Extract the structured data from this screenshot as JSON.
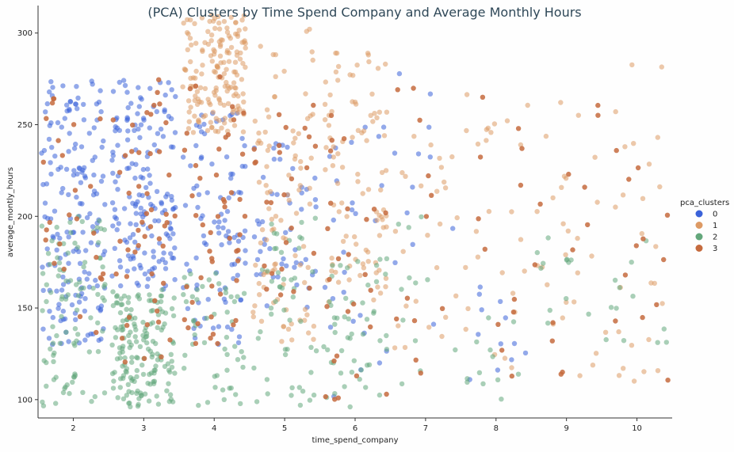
{
  "chart_data": {
    "type": "scatter",
    "title": "(PCA) Clusters by Time Spend Company and Average Monthly Hours",
    "xlabel": "time_spend_company",
    "ylabel": "average_montly_hours",
    "xlim": [
      1.5,
      10.5
    ],
    "ylim": [
      90,
      315
    ],
    "xticks": [
      2,
      3,
      4,
      5,
      6,
      7,
      8,
      9,
      10
    ],
    "yticks": [
      100,
      150,
      200,
      250,
      300
    ],
    "xtick_labels": [
      "2",
      "3",
      "4",
      "5",
      "6",
      "7",
      "8",
      "9",
      "10"
    ],
    "ytick_labels": [
      "100",
      "150",
      "200",
      "250",
      "300"
    ],
    "grid": false,
    "legend_placement": "center-right",
    "legend_title": "pca_clusters",
    "jitter": 0.45,
    "series": [
      {
        "name": "0",
        "color": "#3a62d9",
        "regions": [
          {
            "x": 2,
            "y_range": [
              130,
              275
            ],
            "density": "very high"
          },
          {
            "x": 3,
            "y_range": [
              160,
              275
            ],
            "density": "very high"
          },
          {
            "x": 4,
            "y_range": [
              130,
              260
            ],
            "density": "high"
          },
          {
            "x": 5,
            "y_range": [
              150,
              240
            ],
            "density": "medium"
          },
          {
            "x": 6,
            "y_range": [
              100,
              250
            ],
            "density": "low"
          },
          {
            "x": 7,
            "y_range": [
              130,
              286
            ],
            "density": "sparse"
          },
          {
            "x": 8,
            "y_range": [
              102,
              180
            ],
            "density": "sparse"
          }
        ]
      },
      {
        "name": "1",
        "color": "#dd9a64",
        "regions": [
          {
            "x": 4,
            "y_range": [
              245,
              310
            ],
            "density": "very high"
          },
          {
            "x": 5,
            "y_range": [
              130,
              305
            ],
            "density": "high"
          },
          {
            "x": 6,
            "y_range": [
              150,
              290
            ],
            "density": "high"
          },
          {
            "x": 7,
            "y_range": [
              100,
              286
            ],
            "density": "low"
          },
          {
            "x": 8,
            "y_range": [
              110,
              280
            ],
            "density": "low"
          },
          {
            "x": 9,
            "y_range": [
              100,
              282
            ],
            "density": "low"
          },
          {
            "x": 10,
            "y_range": [
              110,
              285
            ],
            "density": "low"
          }
        ]
      },
      {
        "name": "2",
        "color": "#63a77b",
        "regions": [
          {
            "x": 2,
            "y_range": [
              96,
              200
            ],
            "density": "high"
          },
          {
            "x": 3,
            "y_range": [
              96,
              160
            ],
            "density": "very high"
          },
          {
            "x": 4,
            "y_range": [
              96,
              170
            ],
            "density": "medium"
          },
          {
            "x": 5,
            "y_range": [
              96,
              200
            ],
            "density": "medium"
          },
          {
            "x": 6,
            "y_range": [
              96,
              180
            ],
            "density": "medium"
          },
          {
            "x": 7,
            "y_range": [
              100,
              200
            ],
            "density": "sparse"
          },
          {
            "x": 8,
            "y_range": [
              100,
              150
            ],
            "density": "sparse"
          },
          {
            "x": 9,
            "y_range": [
              130,
              200
            ],
            "density": "sparse"
          },
          {
            "x": 10,
            "y_range": [
              130,
              200
            ],
            "density": "sparse"
          }
        ]
      },
      {
        "name": "3",
        "color": "#c56b3e",
        "regions": [
          {
            "x": 2,
            "y_range": [
              130,
              275
            ],
            "density": "low"
          },
          {
            "x": 3,
            "y_range": [
              120,
              275
            ],
            "density": "medium"
          },
          {
            "x": 4,
            "y_range": [
              130,
              290
            ],
            "density": "medium"
          },
          {
            "x": 5,
            "y_range": [
              150,
              270
            ],
            "density": "low"
          },
          {
            "x": 6,
            "y_range": [
              100,
              280
            ],
            "density": "low"
          },
          {
            "x": 7,
            "y_range": [
              100,
              270
            ],
            "density": "sparse"
          },
          {
            "x": 8,
            "y_range": [
              110,
              270
            ],
            "density": "sparse"
          },
          {
            "x": 9,
            "y_range": [
              110,
              270
            ],
            "density": "sparse"
          },
          {
            "x": 10,
            "y_range": [
              110,
              270
            ],
            "density": "sparse"
          }
        ]
      }
    ]
  }
}
